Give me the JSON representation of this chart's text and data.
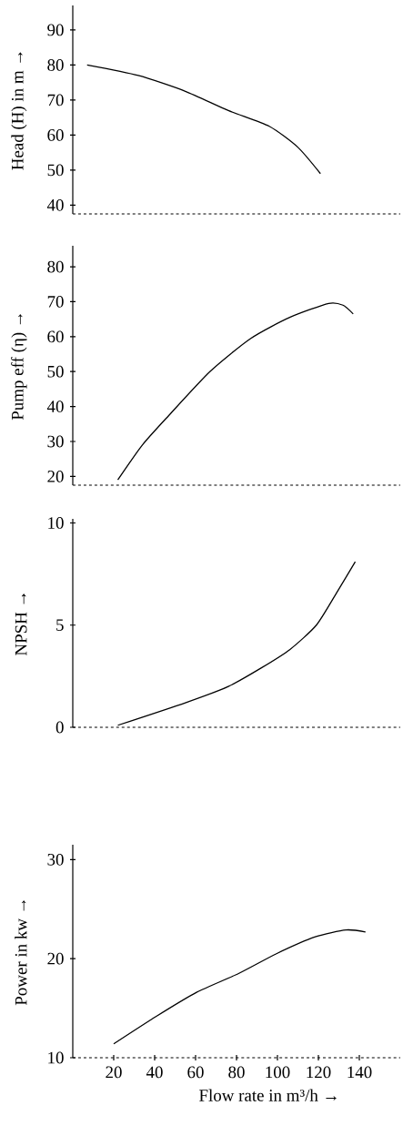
{
  "chart_data": [
    {
      "type": "line",
      "ylabel": "Head (H) in m →",
      "xlim": [
        0,
        160
      ],
      "ylim": [
        37.5,
        97
      ],
      "yticks": [
        40,
        50,
        60,
        70,
        80,
        90
      ],
      "tick_labels": "y",
      "series": [
        {
          "color": "#000000",
          "x": [
            7,
            32,
            55,
            76,
            96,
            110,
            121
          ],
          "values": [
            80,
            77,
            72.5,
            67,
            62.5,
            56.5,
            49
          ]
        }
      ]
    },
    {
      "type": "line",
      "ylabel": "Pump eff (η) →",
      "xlim": [
        0,
        160
      ],
      "ylim": [
        17.5,
        86
      ],
      "yticks": [
        20,
        30,
        40,
        50,
        60,
        70,
        80
      ],
      "tick_labels": "y",
      "series": [
        {
          "color": "#000000",
          "x": [
            22,
            34,
            47,
            67,
            87,
            106,
            125,
            132,
            137
          ],
          "values": [
            19,
            29,
            37.5,
            50,
            59.5,
            65.5,
            69.5,
            69,
            66.5
          ]
        }
      ]
    },
    {
      "type": "line",
      "ylabel": "NPSH →",
      "xlim": [
        0,
        160
      ],
      "ylim": [
        0,
        10.2
      ],
      "yticks": [
        0,
        5,
        10
      ],
      "tick_labels": "y",
      "series": [
        {
          "color": "#000000",
          "x": [
            22,
            55,
            76,
            92,
            106,
            119,
            129,
            138
          ],
          "values": [
            0.1,
            1.2,
            2.0,
            2.9,
            3.8,
            5.0,
            6.6,
            8.1
          ]
        }
      ]
    },
    {
      "type": "line",
      "ylabel": "Power in kw →",
      "xlabel": "Flow rate in m³/h →",
      "xlim": [
        0,
        160
      ],
      "ylim": [
        10,
        31.5
      ],
      "xticks": [
        20,
        40,
        60,
        80,
        100,
        120,
        140
      ],
      "yticks": [
        10,
        20,
        30
      ],
      "series": [
        {
          "color": "#000000",
          "x": [
            20,
            41,
            60.5,
            81,
            99.5,
            118.5,
            133.5,
            143
          ],
          "values": [
            11.4,
            14.2,
            16.6,
            18.5,
            20.5,
            22.2,
            22.9,
            22.7
          ]
        }
      ]
    }
  ]
}
